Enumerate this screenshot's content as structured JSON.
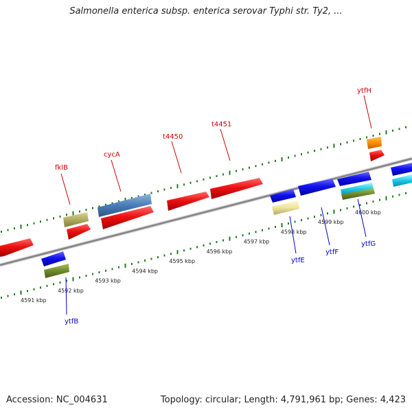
{
  "title": "Salmonella enterica subsp. enterica serovar Typhi str. Ty2, ...",
  "accession": "Accession: NC_004631",
  "summary": "Topology: circular; Length: 4,791,961 bp; Genes: 4,423",
  "colors": {
    "forward_label": "#cc0000",
    "reverse_label": "#0000cc",
    "ticks": "#1f7a1f",
    "backbone": "#999999"
  },
  "scale": {
    "unit": "kbp",
    "ticks": [
      {
        "pos": 4591,
        "label": "4591 kbp"
      },
      {
        "pos": 4592,
        "label": "4592 kbp"
      },
      {
        "pos": 4593,
        "label": "4593 kbp"
      },
      {
        "pos": 4594,
        "label": "4594 kbp"
      },
      {
        "pos": 4595,
        "label": "4595 kbp"
      },
      {
        "pos": 4596,
        "label": "4596 kbp"
      },
      {
        "pos": 4597,
        "label": "4597 kbp"
      },
      {
        "pos": 4598,
        "label": "4598 kbp"
      },
      {
        "pos": 4599,
        "label": "4599 kbp"
      },
      {
        "pos": 4600,
        "label": "4600 kbp"
      }
    ]
  },
  "labels": {
    "forward": [
      "fklB",
      "cycA",
      "t4450",
      "t4451",
      "ytfH"
    ],
    "reverse": [
      "ytfB",
      "ytfE",
      "ytfF",
      "ytfG"
    ]
  }
}
